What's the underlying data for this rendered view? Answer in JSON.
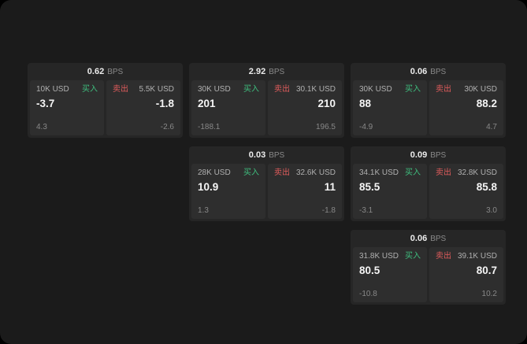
{
  "labels": {
    "buy": "买入",
    "sell": "卖出",
    "bps": "BPS"
  },
  "colors": {
    "buy": "#3fbf7f",
    "sell": "#e05c5c",
    "card_bg": "#262626",
    "panel_bg": "#2e2e2e",
    "page_bg": "#1b1b1b"
  },
  "cards": [
    {
      "spread": "0.62",
      "buy": {
        "amount": "10K USD",
        "price": "-3.7",
        "delta": "4.3"
      },
      "sell": {
        "amount": "5.5K USD",
        "price": "-1.8",
        "delta": "-2.6"
      }
    },
    {
      "spread": "2.92",
      "buy": {
        "amount": "30K USD",
        "price": "201",
        "delta": "-188.1"
      },
      "sell": {
        "amount": "30.1K USD",
        "price": "210",
        "delta": "196.5"
      }
    },
    {
      "spread": "0.06",
      "buy": {
        "amount": "30K USD",
        "price": "88",
        "delta": "-4.9"
      },
      "sell": {
        "amount": "30K USD",
        "price": "88.2",
        "delta": "4.7"
      }
    },
    {
      "spread": "0.03",
      "buy": {
        "amount": "28K USD",
        "price": "10.9",
        "delta": "1.3"
      },
      "sell": {
        "amount": "32.6K USD",
        "price": "11",
        "delta": "-1.8"
      }
    },
    {
      "spread": "0.09",
      "buy": {
        "amount": "34.1K USD",
        "price": "85.5",
        "delta": "-3.1"
      },
      "sell": {
        "amount": "32.8K USD",
        "price": "85.8",
        "delta": "3.0"
      }
    },
    {
      "spread": "0.06",
      "buy": {
        "amount": "31.8K USD",
        "price": "80.5",
        "delta": "-10.8"
      },
      "sell": {
        "amount": "39.1K USD",
        "price": "80.7",
        "delta": "10.2"
      }
    }
  ]
}
